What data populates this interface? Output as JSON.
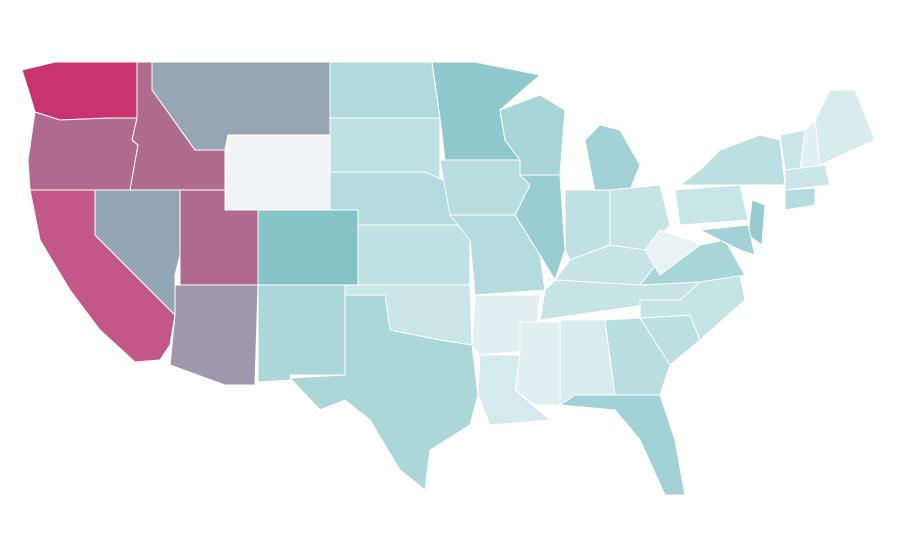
{
  "map": {
    "regions": [
      {
        "color": "#c9336f"
      },
      {
        "color": "#b06a90"
      },
      {
        "color": "#b06c8e"
      },
      {
        "color": "#98a6b4"
      },
      {
        "color": "#f2f3f5"
      },
      {
        "color": "#c3578a"
      },
      {
        "color": "#91a6b2"
      },
      {
        "color": "#b06a90"
      },
      {
        "color": "#9f97ab"
      },
      {
        "color": "#84c3c6"
      },
      {
        "color": "#acd7d9"
      },
      {
        "color": "#b0dadc"
      },
      {
        "color": "#c0e1e3"
      },
      {
        "color": "#b4dbdd"
      },
      {
        "color": "#c0e1e3"
      },
      {
        "color": "#cbe6e8"
      },
      {
        "color": "#acd7d9"
      },
      {
        "color": "#90c9cd"
      },
      {
        "color": "#b8dee0"
      },
      {
        "color": "#b4dbdd"
      },
      {
        "color": "#e2f0f1"
      },
      {
        "color": "#d4eaec"
      },
      {
        "color": "#a8d5d8"
      },
      {
        "color": "#98cdd1"
      },
      {
        "color": "#a2d2d5"
      },
      {
        "color": "#c0e1e3"
      },
      {
        "color": "#c6e3e5"
      },
      {
        "color": "#c6e3e5"
      },
      {
        "color": "#c6e3e5"
      },
      {
        "color": "#e2f0f1"
      },
      {
        "color": "#d9eced"
      },
      {
        "color": "#b8dee0"
      },
      {
        "color": "#a2d2d5"
      },
      {
        "color": "#bcdfe1"
      },
      {
        "color": "#c6e3e5"
      },
      {
        "color": "#a8d5d8"
      },
      {
        "color": "#e8f3f4"
      },
      {
        "color": "#c8e5e7"
      },
      {
        "color": "#bcdfe1"
      },
      {
        "color": "#96ccd0"
      },
      {
        "color": "#a2d2d5"
      },
      {
        "color": "#c8e5e7"
      },
      {
        "color": "#e2f0f1"
      },
      {
        "color": "#d9eced"
      },
      {
        "color": "#cbe6e8"
      },
      {
        "color": "#b4dbdd"
      }
    ]
  }
}
